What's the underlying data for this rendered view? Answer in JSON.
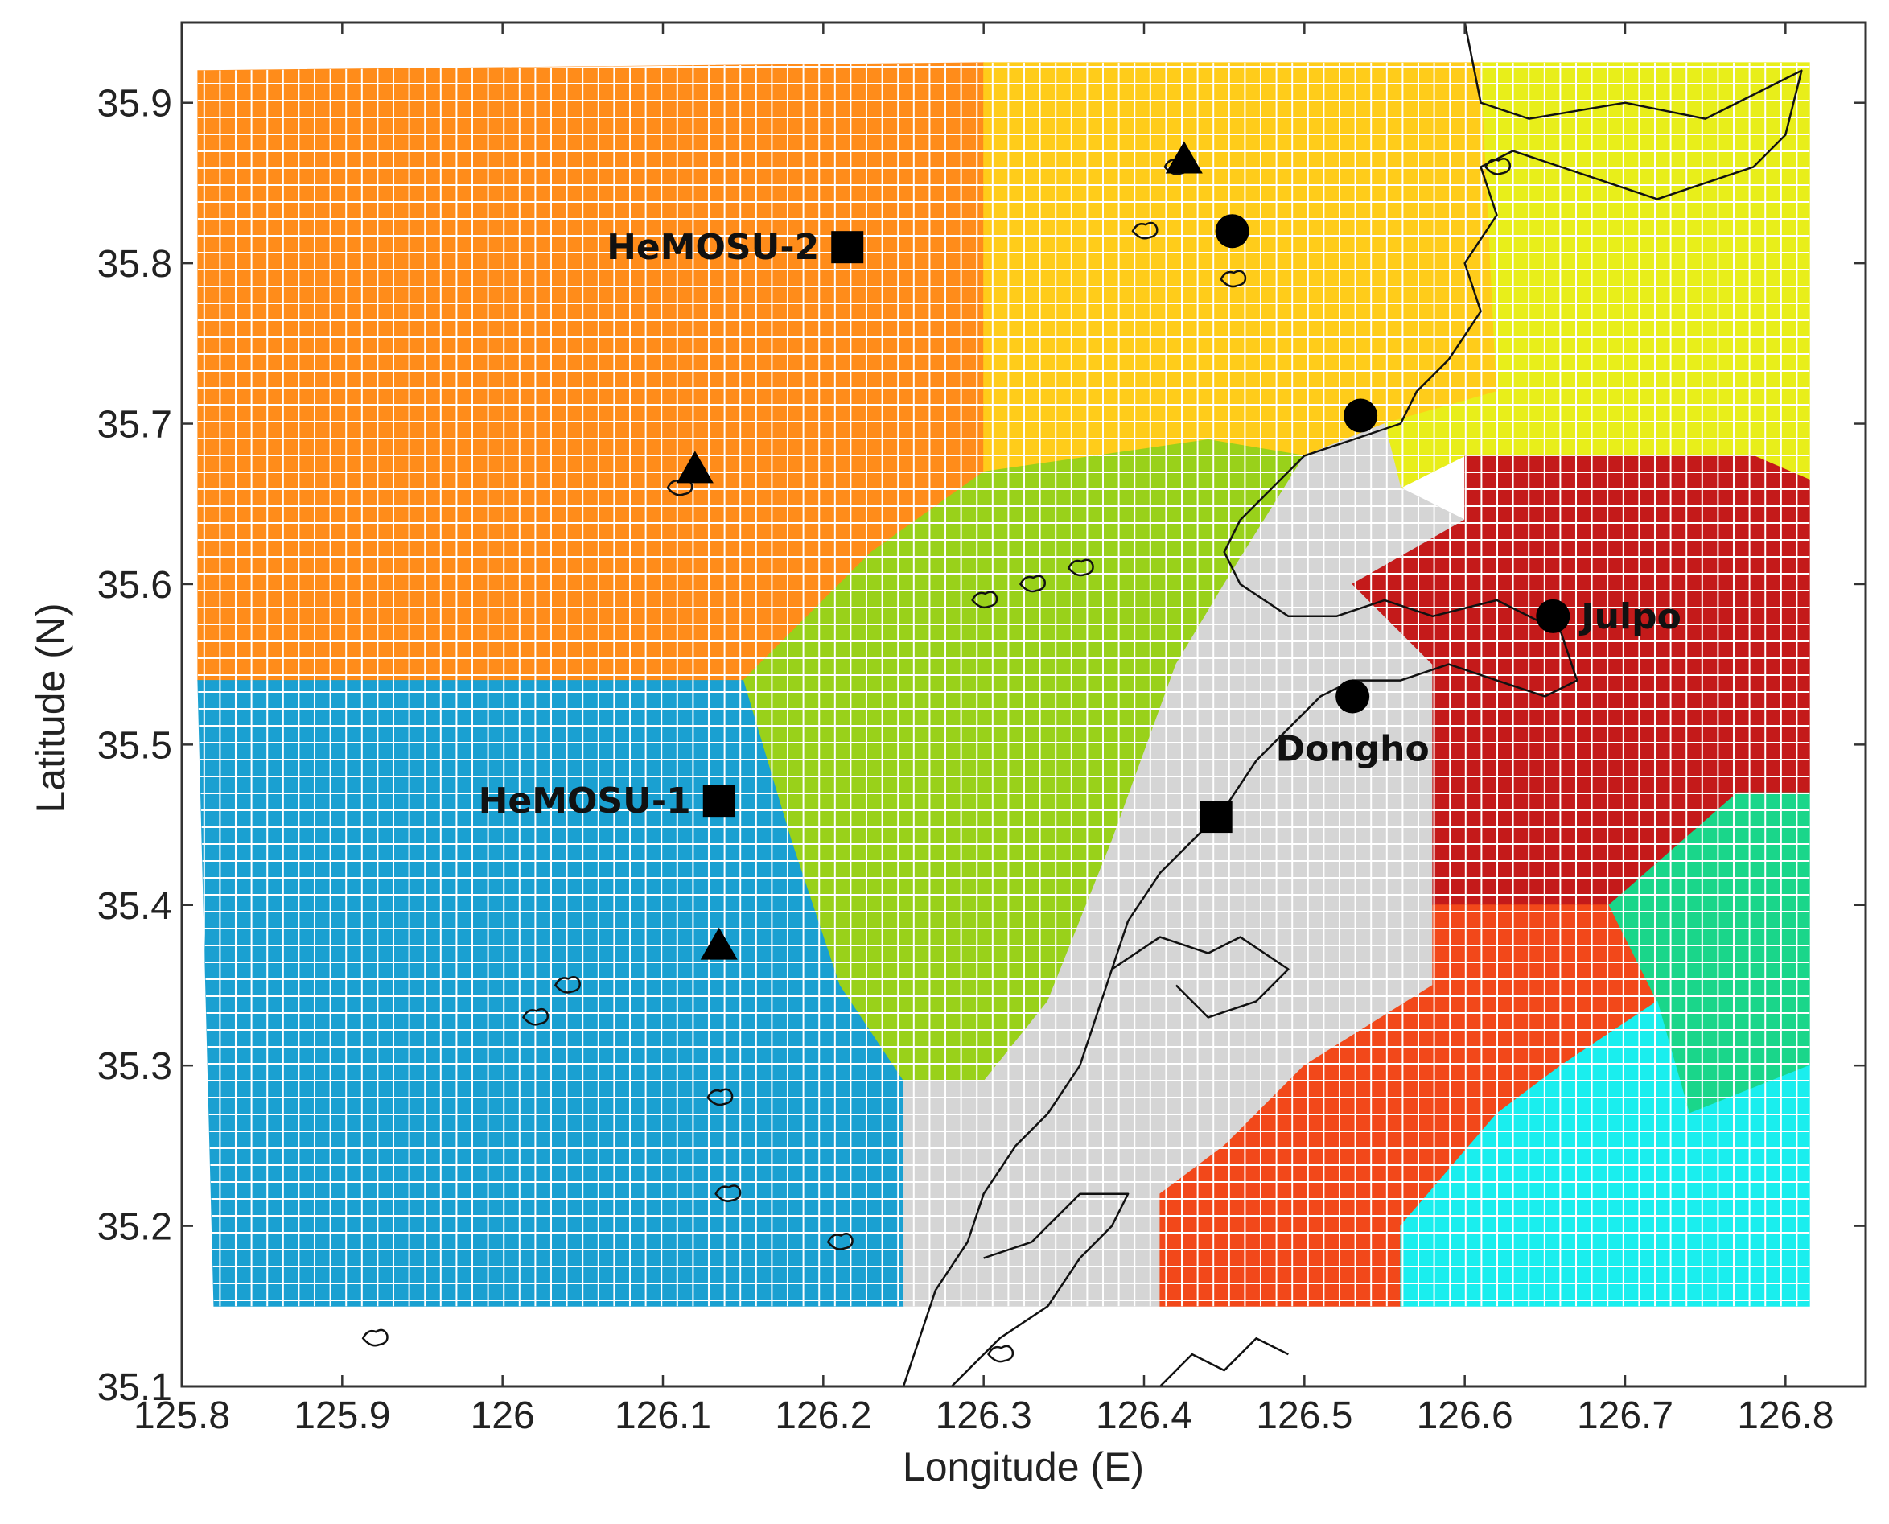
{
  "chart_data": {
    "type": "heatmap",
    "xlabel": "Longitude (E)",
    "ylabel": "Latitude (N)",
    "xlim": [
      125.8,
      126.85
    ],
    "ylim": [
      35.1,
      35.95
    ],
    "x_ticks": [
      125.8,
      125.9,
      126,
      126.1,
      126.2,
      126.3,
      126.4,
      126.5,
      126.6,
      126.7,
      126.8
    ],
    "x_tick_labels": [
      "125.8",
      "125.9",
      "126",
      "126.1",
      "126.2",
      "126.3",
      "126.4",
      "126.5",
      "126.6",
      "126.7",
      "126.8"
    ],
    "y_ticks": [
      35.1,
      35.2,
      35.3,
      35.4,
      35.5,
      35.6,
      35.7,
      35.8,
      35.9
    ],
    "y_tick_labels": [
      "35.1",
      "35.2",
      "35.3",
      "35.4",
      "35.5",
      "35.6",
      "35.7",
      "35.8",
      "35.9"
    ],
    "grid": false,
    "regions": [
      {
        "color": "#ff8c1a",
        "polygon": [
          [
            125.81,
            35.92
          ],
          [
            126.3,
            35.925
          ],
          [
            126.3,
            35.67
          ],
          [
            126.23,
            35.62
          ],
          [
            126.15,
            35.54
          ],
          [
            125.81,
            35.54
          ]
        ]
      },
      {
        "color": "#ffcc1a",
        "polygon": [
          [
            126.3,
            35.925
          ],
          [
            126.61,
            35.925
          ],
          [
            126.62,
            35.72
          ],
          [
            126.55,
            35.7
          ],
          [
            126.5,
            35.68
          ],
          [
            126.44,
            35.69
          ],
          [
            126.3,
            35.67
          ]
        ]
      },
      {
        "color": "#e8ee1a",
        "polygon": [
          [
            126.61,
            35.925
          ],
          [
            126.815,
            35.925
          ],
          [
            126.815,
            35.665
          ],
          [
            126.78,
            35.68
          ],
          [
            126.6,
            35.68
          ],
          [
            126.56,
            35.66
          ],
          [
            126.55,
            35.7
          ],
          [
            126.62,
            35.72
          ]
        ]
      },
      {
        "color": "#99d11a",
        "polygon": [
          [
            126.3,
            35.67
          ],
          [
            126.44,
            35.69
          ],
          [
            126.5,
            35.68
          ],
          [
            126.45,
            35.6
          ],
          [
            126.42,
            35.55
          ],
          [
            126.38,
            35.44
          ],
          [
            126.34,
            35.34
          ],
          [
            126.3,
            35.29
          ],
          [
            126.25,
            35.29
          ],
          [
            126.21,
            35.35
          ],
          [
            126.18,
            35.44
          ],
          [
            126.15,
            35.54
          ],
          [
            126.23,
            35.62
          ]
        ]
      },
      {
        "color": "#1aa0d1",
        "polygon": [
          [
            125.81,
            35.54
          ],
          [
            126.15,
            35.54
          ],
          [
            126.18,
            35.44
          ],
          [
            126.21,
            35.35
          ],
          [
            126.25,
            35.29
          ],
          [
            126.25,
            35.15
          ],
          [
            125.82,
            35.15
          ]
        ]
      },
      {
        "color": "#d5d5d5",
        "polygon": [
          [
            126.5,
            35.68
          ],
          [
            126.55,
            35.7
          ],
          [
            126.56,
            35.66
          ],
          [
            126.6,
            35.64
          ],
          [
            126.53,
            35.6
          ],
          [
            126.58,
            35.55
          ],
          [
            126.58,
            35.45
          ],
          [
            126.58,
            35.35
          ],
          [
            126.5,
            35.3
          ],
          [
            126.45,
            35.25
          ],
          [
            126.41,
            35.22
          ],
          [
            126.41,
            35.15
          ],
          [
            126.25,
            35.15
          ],
          [
            126.25,
            35.29
          ],
          [
            126.3,
            35.29
          ],
          [
            126.34,
            35.34
          ],
          [
            126.38,
            35.44
          ],
          [
            126.42,
            35.55
          ],
          [
            126.45,
            35.6
          ]
        ]
      },
      {
        "color": "#c41a1a",
        "polygon": [
          [
            126.6,
            35.68
          ],
          [
            126.78,
            35.68
          ],
          [
            126.815,
            35.665
          ],
          [
            126.815,
            35.47
          ],
          [
            126.77,
            35.47
          ],
          [
            126.69,
            35.4
          ],
          [
            126.58,
            35.4
          ],
          [
            126.58,
            35.45
          ],
          [
            126.58,
            35.55
          ],
          [
            126.53,
            35.6
          ],
          [
            126.6,
            35.64
          ]
        ]
      },
      {
        "color": "#f2481a",
        "polygon": [
          [
            126.58,
            35.4
          ],
          [
            126.69,
            35.4
          ],
          [
            126.72,
            35.34
          ],
          [
            126.66,
            35.3
          ],
          [
            126.62,
            35.27
          ],
          [
            126.56,
            35.2
          ],
          [
            126.56,
            35.15
          ],
          [
            126.41,
            35.15
          ],
          [
            126.41,
            35.22
          ],
          [
            126.45,
            35.25
          ],
          [
            126.5,
            35.3
          ],
          [
            126.58,
            35.35
          ]
        ]
      },
      {
        "color": "#1ad68a",
        "polygon": [
          [
            126.77,
            35.47
          ],
          [
            126.815,
            35.47
          ],
          [
            126.815,
            35.3
          ],
          [
            126.74,
            35.27
          ],
          [
            126.72,
            35.34
          ],
          [
            126.69,
            35.4
          ]
        ]
      },
      {
        "color": "#1aeeee",
        "polygon": [
          [
            126.56,
            35.15
          ],
          [
            126.815,
            35.15
          ],
          [
            126.815,
            35.3
          ],
          [
            126.74,
            35.27
          ],
          [
            126.72,
            35.34
          ],
          [
            126.66,
            35.3
          ],
          [
            126.62,
            35.27
          ],
          [
            126.56,
            35.2
          ]
        ]
      }
    ],
    "markers": [
      {
        "shape": "square",
        "x": 126.215,
        "y": 35.81,
        "label": "HeMOSU-2",
        "label_side": "left"
      },
      {
        "shape": "square",
        "x": 126.135,
        "y": 35.465,
        "label": "HeMOSU-1",
        "label_side": "left"
      },
      {
        "shape": "square",
        "x": 126.445,
        "y": 35.455,
        "label": "",
        "label_side": "none"
      },
      {
        "shape": "triangle",
        "x": 126.425,
        "y": 35.865,
        "label": "",
        "label_side": "none"
      },
      {
        "shape": "triangle",
        "x": 126.12,
        "y": 35.672,
        "label": "",
        "label_side": "none"
      },
      {
        "shape": "triangle",
        "x": 126.135,
        "y": 35.375,
        "label": "",
        "label_side": "none"
      },
      {
        "shape": "circle",
        "x": 126.455,
        "y": 35.82,
        "label": "",
        "label_side": "none"
      },
      {
        "shape": "circle",
        "x": 126.535,
        "y": 35.705,
        "label": "",
        "label_side": "none"
      },
      {
        "shape": "circle",
        "x": 126.655,
        "y": 35.58,
        "label": "Julpo",
        "label_side": "right"
      },
      {
        "shape": "circle",
        "x": 126.53,
        "y": 35.53,
        "label": "Dongho",
        "label_side": "below"
      }
    ],
    "coastline": [
      [
        [
          126.6,
          35.95
        ],
        [
          126.61,
          35.9
        ],
        [
          126.64,
          35.89
        ],
        [
          126.7,
          35.9
        ],
        [
          126.75,
          35.89
        ],
        [
          126.81,
          35.92
        ],
        [
          126.8,
          35.88
        ],
        [
          126.78,
          35.86
        ],
        [
          126.75,
          35.85
        ],
        [
          126.72,
          35.84
        ],
        [
          126.69,
          35.85
        ],
        [
          126.66,
          35.86
        ],
        [
          126.63,
          35.87
        ],
        [
          126.61,
          35.86
        ],
        [
          126.62,
          35.83
        ],
        [
          126.6,
          35.8
        ],
        [
          126.61,
          35.77
        ],
        [
          126.59,
          35.74
        ],
        [
          126.57,
          35.72
        ],
        [
          126.56,
          35.7
        ],
        [
          126.53,
          35.69
        ],
        [
          126.5,
          35.68
        ],
        [
          126.48,
          35.66
        ],
        [
          126.46,
          35.64
        ],
        [
          126.45,
          35.62
        ],
        [
          126.46,
          35.6
        ],
        [
          126.49,
          35.58
        ],
        [
          126.52,
          35.58
        ],
        [
          126.55,
          35.59
        ],
        [
          126.58,
          35.58
        ],
        [
          126.62,
          35.59
        ],
        [
          126.64,
          35.58
        ],
        [
          126.66,
          35.57
        ],
        [
          126.67,
          35.54
        ],
        [
          126.65,
          35.53
        ],
        [
          126.62,
          35.54
        ],
        [
          126.59,
          35.55
        ],
        [
          126.56,
          35.54
        ],
        [
          126.53,
          35.54
        ],
        [
          126.51,
          35.53
        ],
        [
          126.49,
          35.51
        ],
        [
          126.47,
          35.49
        ],
        [
          126.45,
          35.46
        ],
        [
          126.43,
          35.44
        ],
        [
          126.41,
          35.42
        ],
        [
          126.39,
          35.39
        ],
        [
          126.38,
          35.36
        ],
        [
          126.37,
          35.33
        ],
        [
          126.36,
          35.3
        ],
        [
          126.34,
          35.27
        ],
        [
          126.32,
          35.25
        ],
        [
          126.3,
          35.22
        ],
        [
          126.29,
          35.19
        ],
        [
          126.27,
          35.16
        ],
        [
          126.26,
          35.13
        ],
        [
          126.25,
          35.1
        ]
      ],
      [
        [
          126.28,
          35.1
        ],
        [
          126.31,
          35.13
        ],
        [
          126.34,
          35.15
        ],
        [
          126.36,
          35.18
        ],
        [
          126.38,
          35.2
        ],
        [
          126.39,
          35.22
        ],
        [
          126.36,
          35.22
        ],
        [
          126.33,
          35.19
        ],
        [
          126.3,
          35.18
        ]
      ],
      [
        [
          126.41,
          35.1
        ],
        [
          126.43,
          35.12
        ],
        [
          126.45,
          35.11
        ],
        [
          126.47,
          35.13
        ],
        [
          126.49,
          35.12
        ]
      ],
      [
        [
          126.38,
          35.36
        ],
        [
          126.41,
          35.38
        ],
        [
          126.44,
          35.37
        ],
        [
          126.46,
          35.38
        ],
        [
          126.49,
          35.36
        ],
        [
          126.47,
          35.34
        ],
        [
          126.44,
          35.33
        ],
        [
          126.42,
          35.35
        ]
      ]
    ],
    "islands": [
      {
        "x": 126.42,
        "y": 35.86
      },
      {
        "x": 126.4,
        "y": 35.82
      },
      {
        "x": 126.455,
        "y": 35.79
      },
      {
        "x": 126.3,
        "y": 35.59
      },
      {
        "x": 126.33,
        "y": 35.6
      },
      {
        "x": 126.36,
        "y": 35.61
      },
      {
        "x": 126.02,
        "y": 35.33
      },
      {
        "x": 126.04,
        "y": 35.35
      },
      {
        "x": 126.14,
        "y": 35.22
      },
      {
        "x": 126.135,
        "y": 35.28
      },
      {
        "x": 126.11,
        "y": 35.66
      },
      {
        "x": 126.21,
        "y": 35.19
      },
      {
        "x": 126.31,
        "y": 35.12
      },
      {
        "x": 125.92,
        "y": 35.13
      },
      {
        "x": 126.62,
        "y": 35.86
      }
    ]
  }
}
